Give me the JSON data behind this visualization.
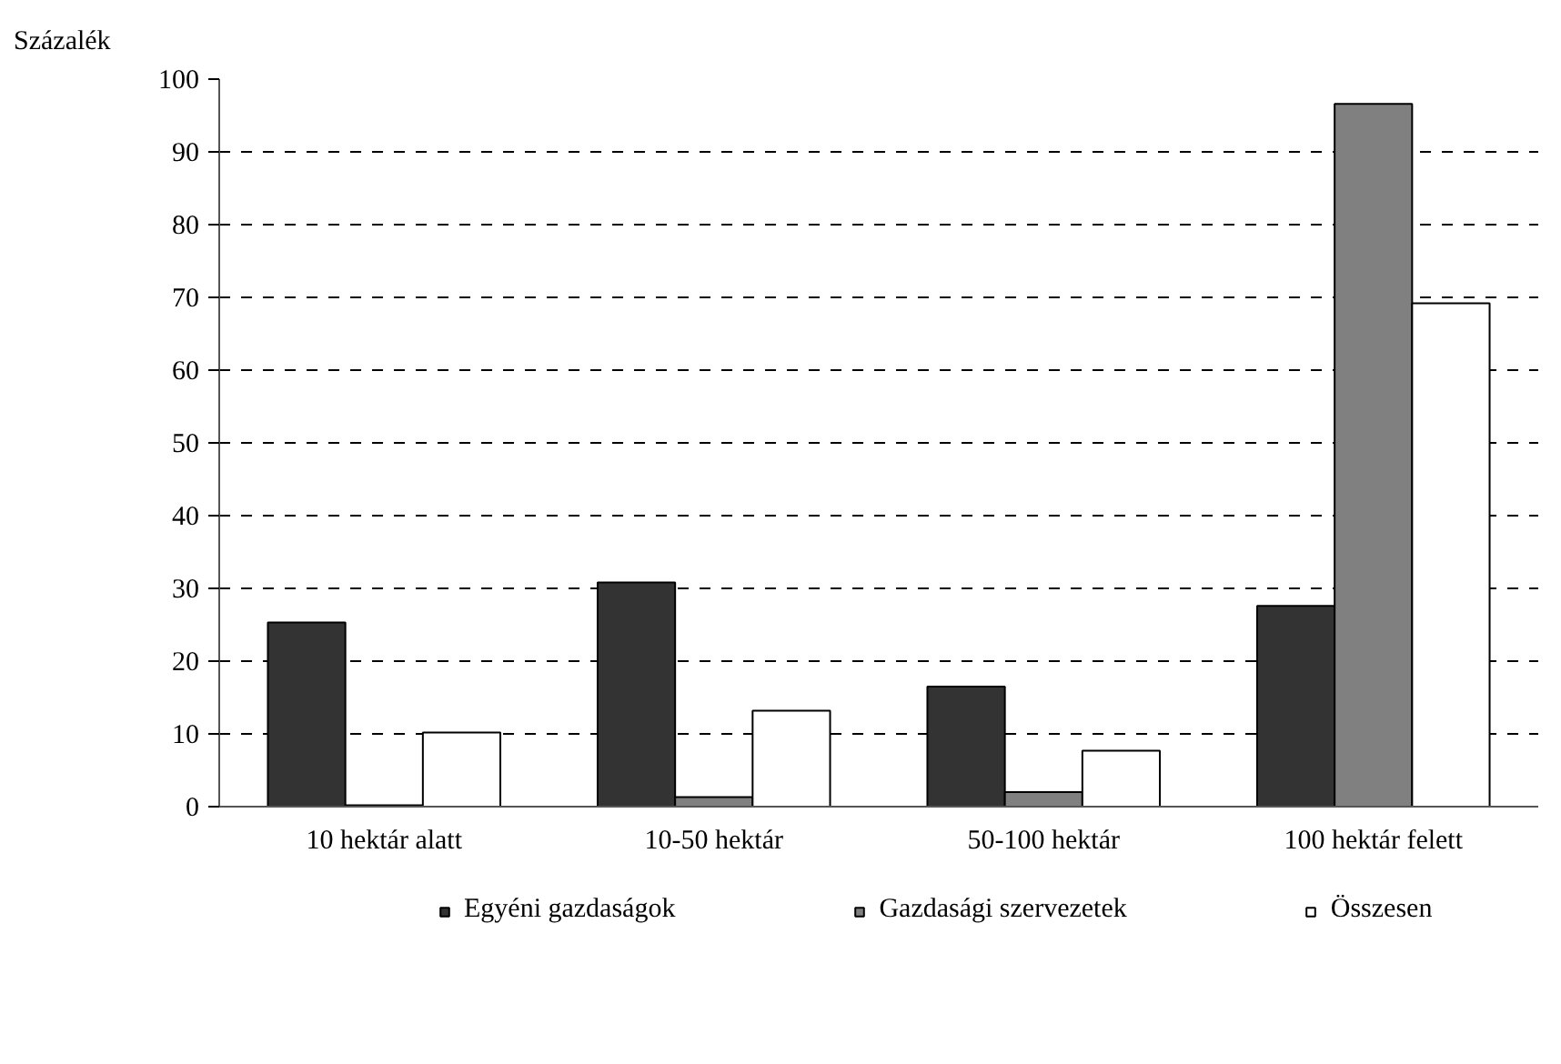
{
  "chart_data": {
    "type": "bar",
    "ylabel": "Százalék",
    "categories": [
      "10 hektár alatt",
      "10-50 hektár",
      "50-100 hektár",
      "100 hektár felett"
    ],
    "series": [
      {
        "name": "Egyéni gazdaságok",
        "color": "#333333",
        "values": [
          25.3,
          30.8,
          16.5,
          27.6
        ]
      },
      {
        "name": "Gazdasági szervezetek",
        "color": "#808080",
        "values": [
          0.2,
          1.3,
          2.0,
          96.6
        ]
      },
      {
        "name": "Összesen",
        "color": "#ffffff",
        "values": [
          10.2,
          13.2,
          7.7,
          69.2
        ]
      }
    ],
    "ylim": [
      0,
      100
    ],
    "yticks": [
      0,
      10,
      20,
      30,
      40,
      50,
      60,
      70,
      80,
      90,
      100
    ],
    "grid": "y",
    "legend": "bottom"
  }
}
